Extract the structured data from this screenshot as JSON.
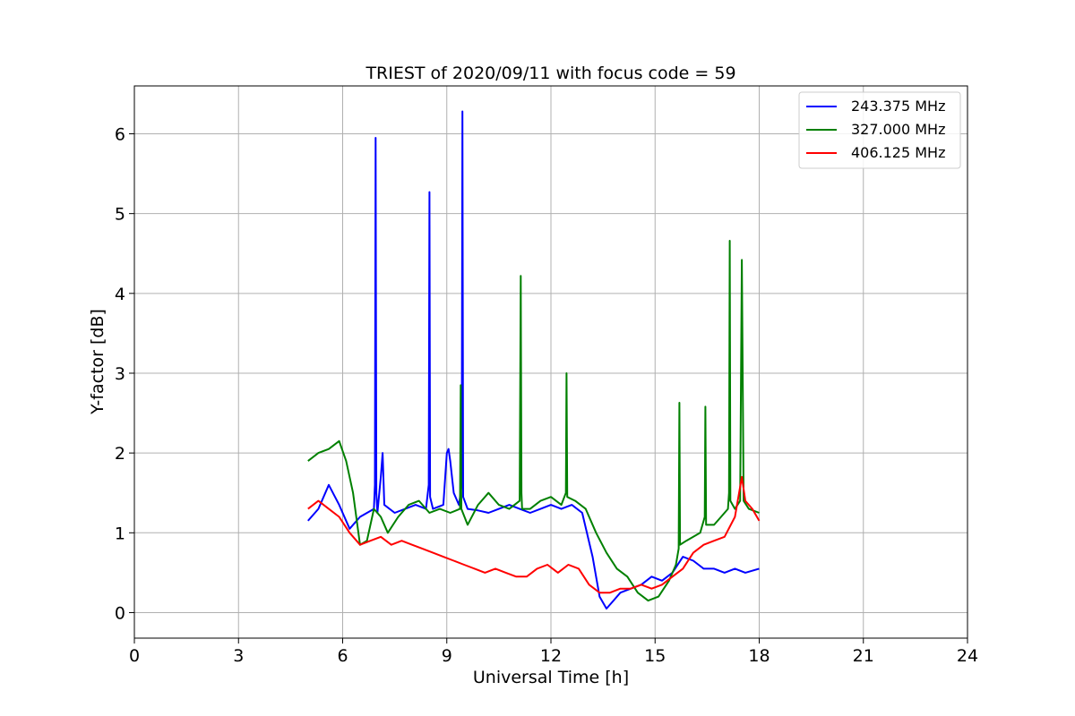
{
  "chart_data": {
    "type": "line",
    "title": "TRIEST of 2020/09/11 with focus code = 59",
    "xlabel": "Universal Time [h]",
    "ylabel": "Y-factor [dB]",
    "xlim": [
      0,
      24
    ],
    "ylim": [
      -0.32,
      6.6
    ],
    "xticks": [
      0,
      3,
      6,
      9,
      12,
      15,
      18,
      21,
      24
    ],
    "yticks": [
      0,
      1,
      2,
      3,
      4,
      5,
      6
    ],
    "grid": true,
    "legend_position": "top-right",
    "series": [
      {
        "name": "243.375 MHz",
        "color": "#0000ff",
        "x": [
          5.0,
          5.3,
          5.6,
          5.9,
          6.2,
          6.5,
          6.9,
          6.93,
          6.95,
          6.97,
          7.0,
          7.1,
          7.15,
          7.2,
          7.5,
          7.8,
          8.1,
          8.4,
          8.48,
          8.5,
          8.52,
          8.6,
          8.9,
          9.0,
          9.05,
          9.1,
          9.2,
          9.35,
          9.43,
          9.45,
          9.47,
          9.6,
          9.9,
          10.2,
          10.5,
          10.8,
          11.1,
          11.4,
          11.7,
          12.0,
          12.3,
          12.6,
          12.9,
          13.2,
          13.4,
          13.6,
          13.8,
          14.0,
          14.3,
          14.6,
          14.9,
          15.2,
          15.5,
          15.8,
          16.1,
          16.4,
          16.7,
          17.0,
          17.3,
          17.6,
          18.0
        ],
        "y": [
          1.15,
          1.3,
          1.6,
          1.35,
          1.05,
          1.2,
          1.3,
          1.6,
          5.95,
          1.5,
          1.25,
          1.7,
          2.0,
          1.35,
          1.25,
          1.3,
          1.35,
          1.3,
          1.6,
          5.27,
          1.45,
          1.3,
          1.35,
          2.0,
          2.05,
          1.9,
          1.5,
          1.35,
          1.6,
          6.28,
          1.45,
          1.3,
          1.28,
          1.25,
          1.3,
          1.35,
          1.3,
          1.25,
          1.3,
          1.35,
          1.3,
          1.35,
          1.25,
          0.7,
          0.2,
          0.05,
          0.15,
          0.25,
          0.3,
          0.35,
          0.45,
          0.4,
          0.5,
          0.7,
          0.65,
          0.55,
          0.55,
          0.5,
          0.55,
          0.5,
          0.55
        ]
      },
      {
        "name": "327.000 MHz",
        "color": "#008000",
        "x": [
          5.0,
          5.3,
          5.6,
          5.9,
          6.1,
          6.3,
          6.5,
          6.7,
          6.9,
          7.1,
          7.3,
          7.6,
          7.9,
          8.2,
          8.5,
          8.8,
          9.1,
          9.38,
          9.4,
          9.42,
          9.6,
          9.9,
          10.2,
          10.5,
          10.8,
          11.1,
          11.13,
          11.15,
          11.17,
          11.4,
          11.7,
          12.0,
          12.3,
          12.43,
          12.45,
          12.47,
          12.7,
          13.0,
          13.3,
          13.6,
          13.9,
          14.2,
          14.5,
          14.8,
          15.1,
          15.4,
          15.6,
          15.68,
          15.7,
          15.72,
          15.9,
          16.1,
          16.3,
          16.43,
          16.45,
          16.47,
          16.7,
          16.9,
          17.1,
          17.13,
          17.15,
          17.17,
          17.3,
          17.45,
          17.5,
          17.55,
          17.7,
          18.0
        ],
        "y": [
          1.9,
          2.0,
          2.05,
          2.15,
          1.9,
          1.5,
          0.85,
          0.9,
          1.3,
          1.2,
          1.0,
          1.2,
          1.35,
          1.4,
          1.25,
          1.3,
          1.25,
          1.3,
          2.85,
          1.3,
          1.1,
          1.35,
          1.5,
          1.35,
          1.3,
          1.4,
          4.22,
          1.5,
          1.3,
          1.3,
          1.4,
          1.45,
          1.35,
          1.5,
          3.0,
          1.45,
          1.4,
          1.3,
          1.0,
          0.75,
          0.55,
          0.45,
          0.25,
          0.15,
          0.2,
          0.4,
          0.6,
          0.8,
          2.63,
          0.85,
          0.9,
          0.95,
          1.0,
          1.2,
          2.58,
          1.1,
          1.1,
          1.2,
          1.3,
          1.5,
          4.66,
          1.4,
          1.3,
          1.4,
          4.42,
          1.4,
          1.3,
          1.25
        ]
      },
      {
        "name": "406.125 MHz",
        "color": "#ff0000",
        "x": [
          5.0,
          5.3,
          5.6,
          5.9,
          6.2,
          6.5,
          6.8,
          7.1,
          7.4,
          7.7,
          8.0,
          8.3,
          8.6,
          8.9,
          9.2,
          9.5,
          9.8,
          10.1,
          10.4,
          10.7,
          11.0,
          11.3,
          11.6,
          11.9,
          12.2,
          12.5,
          12.8,
          13.1,
          13.4,
          13.7,
          14.0,
          14.3,
          14.6,
          14.9,
          15.2,
          15.5,
          15.8,
          16.1,
          16.4,
          16.7,
          17.0,
          17.3,
          17.5,
          17.6,
          17.8,
          18.0
        ],
        "y": [
          1.3,
          1.4,
          1.3,
          1.2,
          1.0,
          0.85,
          0.9,
          0.95,
          0.85,
          0.9,
          0.85,
          0.8,
          0.75,
          0.7,
          0.65,
          0.6,
          0.55,
          0.5,
          0.55,
          0.5,
          0.45,
          0.45,
          0.55,
          0.6,
          0.5,
          0.6,
          0.55,
          0.35,
          0.25,
          0.25,
          0.3,
          0.3,
          0.35,
          0.3,
          0.35,
          0.45,
          0.55,
          0.75,
          0.85,
          0.9,
          0.95,
          1.2,
          1.7,
          1.4,
          1.3,
          1.15
        ]
      }
    ]
  }
}
